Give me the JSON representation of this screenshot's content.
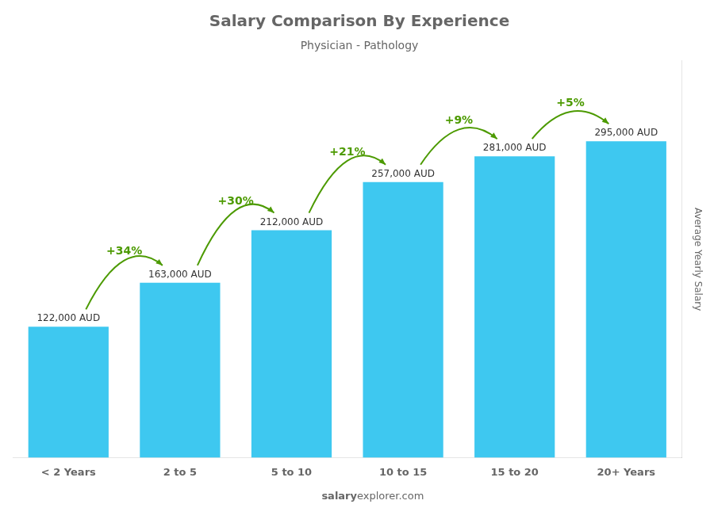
{
  "chart_data": {
    "type": "bar",
    "title": "Salary Comparison By Experience",
    "subtitle": "Physician - Pathology",
    "categories": [
      "< 2 Years",
      "2 to 5",
      "5 to 10",
      "10 to 15",
      "15 to 20",
      "20+ Years"
    ],
    "values": [
      122000,
      163000,
      212000,
      257000,
      281000,
      295000
    ],
    "value_labels": [
      "122,000 AUD",
      "163,000 AUD",
      "212,000 AUD",
      "257,000 AUD",
      "281,000 AUD",
      "295,000 AUD"
    ],
    "data_labels": true,
    "annotations": [
      "+34%",
      "+30%",
      "+21%",
      "+9%",
      "+5%"
    ],
    "ylabel": "Average Yearly Salary",
    "footer": [
      "salary",
      "explorer.com"
    ],
    "color": "#3ec8f0",
    "ylim": [
      0,
      370000
    ],
    "grid": false,
    "tick_labels": "x"
  }
}
